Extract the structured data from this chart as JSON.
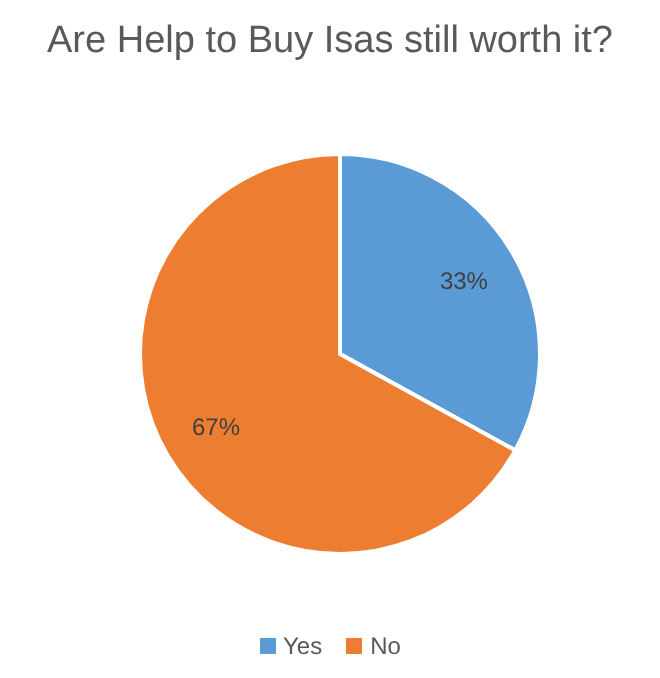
{
  "chart_data": {
    "type": "pie",
    "title": "Are Help to Buy Isas still worth it?",
    "categories": [
      "Yes",
      "No"
    ],
    "values": [
      33,
      67
    ],
    "colors": [
      "#5b9bd5",
      "#ed7d31"
    ],
    "legend": "bottom",
    "value_labels": [
      "33%",
      "67%"
    ]
  }
}
